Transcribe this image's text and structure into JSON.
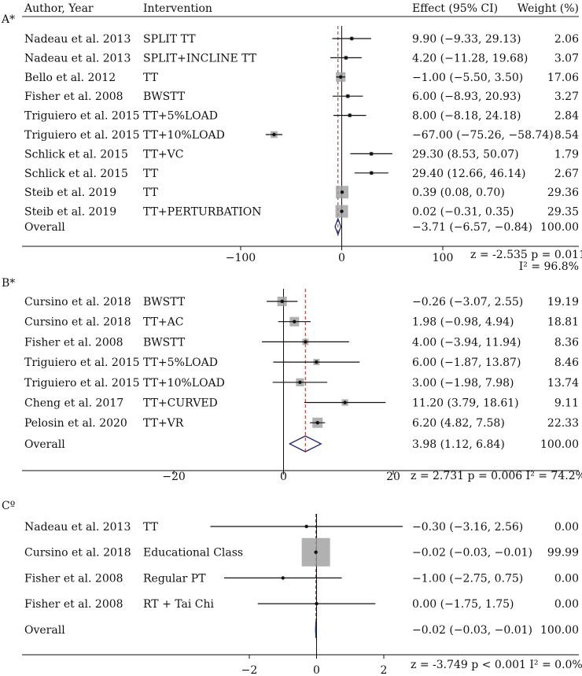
{
  "header": {
    "author_col": "Author, Year",
    "intervention_col": "Intervention",
    "effect_col": "Effect (95% CI)",
    "weight_col": "Weight (%)"
  },
  "chart_data": [
    {
      "type": "forest",
      "panel_label": "A*",
      "xlim": [
        -115,
        135
      ],
      "ticks": [
        -100,
        0,
        100
      ],
      "tick_labels": [
        "−100",
        "0",
        "100"
      ],
      "null_line": 0,
      "pooled_line": -3.71,
      "studies": [
        {
          "author": "Nadeau et al. 2013",
          "intervention": "SPLIT TT",
          "effect": 9.9,
          "lo": -9.33,
          "hi": 29.13,
          "effect_text": "9.90 (−9.33, 29.13)",
          "weight": 2.06,
          "weight_text": "2.06"
        },
        {
          "author": "Nadeau et al. 2013",
          "intervention": "SPLIT+INCLINE TT",
          "effect": 4.2,
          "lo": -11.28,
          "hi": 19.68,
          "effect_text": "4.20 (−11.28, 19.68)",
          "weight": 3.07,
          "weight_text": "3.07"
        },
        {
          "author": "Bello et al. 2012",
          "intervention": "TT",
          "effect": -1.0,
          "lo": -5.5,
          "hi": 3.5,
          "effect_text": "−1.00 (−5.50, 3.50)",
          "weight": 17.06,
          "weight_text": "17.06"
        },
        {
          "author": "Fisher et al. 2008",
          "intervention": "BWSTT",
          "effect": 6.0,
          "lo": -8.93,
          "hi": 20.93,
          "effect_text": "6.00 (−8.93, 20.93)",
          "weight": 3.27,
          "weight_text": "3.27"
        },
        {
          "author": "Triguiero et al. 2015",
          "intervention": "TT+5%LOAD",
          "effect": 8.0,
          "lo": -8.18,
          "hi": 24.18,
          "effect_text": "8.00 (−8.18, 24.18)",
          "weight": 2.84,
          "weight_text": "2.84"
        },
        {
          "author": "Triguiero et al. 2015",
          "intervention": "TT+10%LOAD",
          "effect": -67.0,
          "lo": -75.26,
          "hi": -58.74,
          "effect_text": "−67.00 (−75.26, −58.74)",
          "weight": 8.54,
          "weight_text": "8.54"
        },
        {
          "author": "Schlick et al. 2015",
          "intervention": "TT+VC",
          "effect": 29.3,
          "lo": 8.53,
          "hi": 50.07,
          "effect_text": "29.30 (8.53, 50.07)",
          "weight": 1.79,
          "weight_text": "1.79"
        },
        {
          "author": "Schlick et al. 2015",
          "intervention": "TT",
          "effect": 29.4,
          "lo": 12.66,
          "hi": 46.14,
          "effect_text": "29.40 (12.66, 46.14)",
          "weight": 2.67,
          "weight_text": "2.67"
        },
        {
          "author": "Steib et al. 2019",
          "intervention": "TT",
          "effect": 0.39,
          "lo": 0.08,
          "hi": 0.7,
          "effect_text": "0.39 (0.08, 0.70)",
          "weight": 29.36,
          "weight_text": "29.36"
        },
        {
          "author": "Steib et al. 2019",
          "intervention": "TT+PERTURBATION",
          "effect": 0.02,
          "lo": -0.31,
          "hi": 0.35,
          "effect_text": "0.02 (−0.31, 0.35)",
          "weight": 29.35,
          "weight_text": "29.35"
        }
      ],
      "overall": {
        "label": "Overall",
        "effect": -3.71,
        "lo": -6.57,
        "hi": -0.84,
        "effect_text": "−3.71 (−6.57, −0.84)",
        "weight_text": "100.00"
      },
      "stats_line1": "z =  -2.535  p = 0.011",
      "stats_line2": "I² = 96.8%"
    },
    {
      "type": "forest",
      "panel_label": "B*",
      "xlim": [
        -29.5,
        20.5
      ],
      "ticks": [
        -20,
        0,
        20
      ],
      "tick_labels": [
        "−20",
        "0",
        "20"
      ],
      "null_line": 0,
      "pooled_line": 3.98,
      "studies": [
        {
          "author": "Cursino et al. 2018",
          "intervention": "BWSTT",
          "effect": -0.26,
          "lo": -3.07,
          "hi": 2.55,
          "effect_text": "−0.26 (−3.07, 2.55)",
          "weight": 19.19,
          "weight_text": "19.19"
        },
        {
          "author": "Cursino et al. 2018",
          "intervention": "TT+AC",
          "effect": 1.98,
          "lo": -0.98,
          "hi": 4.94,
          "effect_text": "1.98 (−0.98, 4.94)",
          "weight": 18.81,
          "weight_text": "18.81"
        },
        {
          "author": "Fisher et al. 2008",
          "intervention": "BWSTT",
          "effect": 4.0,
          "lo": -3.94,
          "hi": 11.94,
          "effect_text": "4.00 (−3.94, 11.94)",
          "weight": 8.36,
          "weight_text": "8.36"
        },
        {
          "author": "Triguiero et al. 2015",
          "intervention": "TT+5%LOAD",
          "effect": 6.0,
          "lo": -1.87,
          "hi": 13.87,
          "effect_text": "6.00 (−1.87, 13.87)",
          "weight": 8.46,
          "weight_text": "8.46"
        },
        {
          "author": "Triguiero et al. 2015",
          "intervention": "TT+10%LOAD",
          "effect": 3.0,
          "lo": -1.98,
          "hi": 7.98,
          "effect_text": "3.00 (−1.98, 7.98)",
          "weight": 13.74,
          "weight_text": "13.74"
        },
        {
          "author": "Cheng et al. 2017",
          "intervention": "TT+CURVED",
          "effect": 11.2,
          "lo": 3.79,
          "hi": 18.61,
          "effect_text": "11.20 (3.79, 18.61)",
          "weight": 9.11,
          "weight_text": "9.11"
        },
        {
          "author": "Pelosin et al. 2020",
          "intervention": "TT+VR",
          "effect": 6.2,
          "lo": 4.82,
          "hi": 7.58,
          "effect_text": "6.20 (4.82, 7.58)",
          "weight": 22.33,
          "weight_text": "22.33"
        }
      ],
      "overall": {
        "label": "Overall",
        "effect": 3.98,
        "lo": 1.12,
        "hi": 6.84,
        "effect_text": "3.98 (1.12, 6.84)",
        "weight_text": "100.00"
      },
      "stats_line1": "z =   2.731   p = 0.006   I² = 74.2%",
      "stats_line2": ""
    },
    {
      "type": "forest",
      "panel_label": "Cº",
      "xlim": [
        -3.6,
        2.6
      ],
      "ticks": [
        -2,
        0,
        2
      ],
      "tick_labels": [
        "−2",
        "0",
        "2"
      ],
      "null_line": 0,
      "pooled_line": -0.02,
      "studies": [
        {
          "author": "Nadeau et al. 2013",
          "intervention": "TT",
          "effect": -0.3,
          "lo": -3.16,
          "hi": 2.56,
          "effect_text": "−0.30 (−3.16, 2.56)",
          "weight": 0.0,
          "weight_text": "0.00"
        },
        {
          "author": "Cursino et al. 2018",
          "intervention": "Educational Class",
          "effect": -0.02,
          "lo": -0.03,
          "hi": -0.01,
          "effect_text": "−0.02 (−0.03, −0.01)",
          "weight": 99.99,
          "weight_text": "99.99"
        },
        {
          "author": "Fisher et al. 2008",
          "intervention": "Regular PT",
          "effect": -1.0,
          "lo": -2.75,
          "hi": 0.75,
          "effect_text": "−1.00 (−2.75, 0.75)",
          "weight": 0.0,
          "weight_text": "0.00"
        },
        {
          "author": "Fisher et al. 2008",
          "intervention": "RT + Tai Chi",
          "effect": 0.0,
          "lo": -1.75,
          "hi": 1.75,
          "effect_text": "0.00 (−1.75, 1.75)",
          "weight": 0.0,
          "weight_text": "0.00"
        }
      ],
      "overall": {
        "label": "Overall",
        "effect": -0.02,
        "lo": -0.03,
        "hi": -0.01,
        "effect_text": "−0.02 (−0.03, −0.01)",
        "weight_text": "100.00"
      },
      "stats_line1": "z =   -3.749   p < 0.001   I² =  0.0%",
      "stats_line2": ""
    }
  ]
}
